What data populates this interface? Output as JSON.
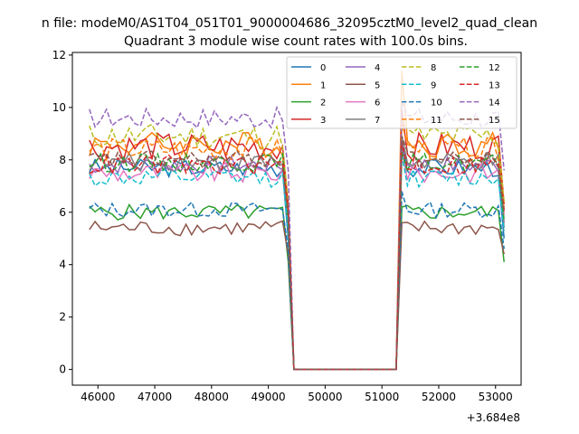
{
  "suptitle": "n file: modeM0/AS1T04_051T01_9000004686_32095cztM0_level2_quad_clean",
  "chart_data": {
    "type": "line",
    "title": "Quadrant 3 module wise count rates with 100.0s bins.",
    "xlabel": "",
    "ylabel": "",
    "x_offset_label": "+3.684e8",
    "xlim": [
      45550,
      53450
    ],
    "ylim": [
      -0.6,
      12.1
    ],
    "xticks": [
      46000,
      47000,
      48000,
      49000,
      50000,
      51000,
      52000,
      53000
    ],
    "xtick_labels": [
      "46000",
      "47000",
      "48000",
      "49000",
      "50000",
      "51000",
      "52000",
      "53000"
    ],
    "yticks": [
      0,
      2,
      4,
      6,
      8,
      10,
      12
    ],
    "ytick_labels": [
      "0",
      "2",
      "4",
      "6",
      "8",
      "10",
      "12"
    ],
    "grid": false,
    "legend": {
      "position": "top-right",
      "columns": 4
    },
    "bins": {
      "x_start_first": 45850,
      "x_end_first": 49350,
      "step": 100,
      "gap_x": [
        49450,
        51250
      ],
      "x_start_second": 51350,
      "x_end_second": 53150
    },
    "series": [
      {
        "name": "0",
        "color": "#1f77b4",
        "dash": "solid",
        "level": 7.7,
        "spread": 0.35,
        "drop": 5.0,
        "peak": 8.6
      },
      {
        "name": "1",
        "color": "#ff7f0e",
        "dash": "solid",
        "level": 8.6,
        "spread": 0.5,
        "drop": 6.0,
        "peak": 11.4
      },
      {
        "name": "2",
        "color": "#2ca02c",
        "dash": "solid",
        "level": 6.0,
        "spread": 0.3,
        "drop": 4.1,
        "peak": 6.2
      },
      {
        "name": "3",
        "color": "#d62728",
        "dash": "solid",
        "level": 8.5,
        "spread": 0.55,
        "drop": 6.3,
        "peak": 9.9
      },
      {
        "name": "4",
        "color": "#9467bd",
        "dash": "solid",
        "level": 7.8,
        "spread": 0.35,
        "drop": 5.6,
        "peak": 8.6
      },
      {
        "name": "5",
        "color": "#8c564b",
        "dash": "solid",
        "level": 5.4,
        "spread": 0.3,
        "drop": 4.4,
        "peak": 5.6
      },
      {
        "name": "6",
        "color": "#e377c2",
        "dash": "solid",
        "level": 7.5,
        "spread": 0.4,
        "drop": 5.9,
        "peak": 8.4
      },
      {
        "name": "7",
        "color": "#7f7f7f",
        "dash": "solid",
        "level": 7.9,
        "spread": 0.35,
        "drop": 5.4,
        "peak": 8.9
      },
      {
        "name": "8",
        "color": "#bcbd22",
        "dash": "dashed",
        "level": 8.9,
        "spread": 0.5,
        "drop": 6.4,
        "peak": 9.6
      },
      {
        "name": "9",
        "color": "#17becf",
        "dash": "dashed",
        "level": 7.3,
        "spread": 0.35,
        "drop": 5.3,
        "peak": 8.2
      },
      {
        "name": "10",
        "color": "#1f77b4",
        "dash": "dashed",
        "level": 6.1,
        "spread": 0.3,
        "drop": 4.6,
        "peak": 6.8
      },
      {
        "name": "11",
        "color": "#ff7f0e",
        "dash": "dashed",
        "level": 8.4,
        "spread": 0.45,
        "drop": 6.2,
        "peak": 9.4
      },
      {
        "name": "12",
        "color": "#2ca02c",
        "dash": "dashed",
        "level": 7.9,
        "spread": 0.35,
        "drop": 5.7,
        "peak": 8.3
      },
      {
        "name": "13",
        "color": "#d62728",
        "dash": "dashed",
        "level": 7.8,
        "spread": 0.4,
        "drop": 6.1,
        "peak": 8.7
      },
      {
        "name": "14",
        "color": "#9467bd",
        "dash": "dashed",
        "level": 9.6,
        "spread": 0.4,
        "drop": 7.6,
        "peak": 10.2
      },
      {
        "name": "15",
        "color": "#8c564b",
        "dash": "dashed",
        "level": 8.0,
        "spread": 0.35,
        "drop": 6.0,
        "peak": 8.9
      }
    ]
  }
}
